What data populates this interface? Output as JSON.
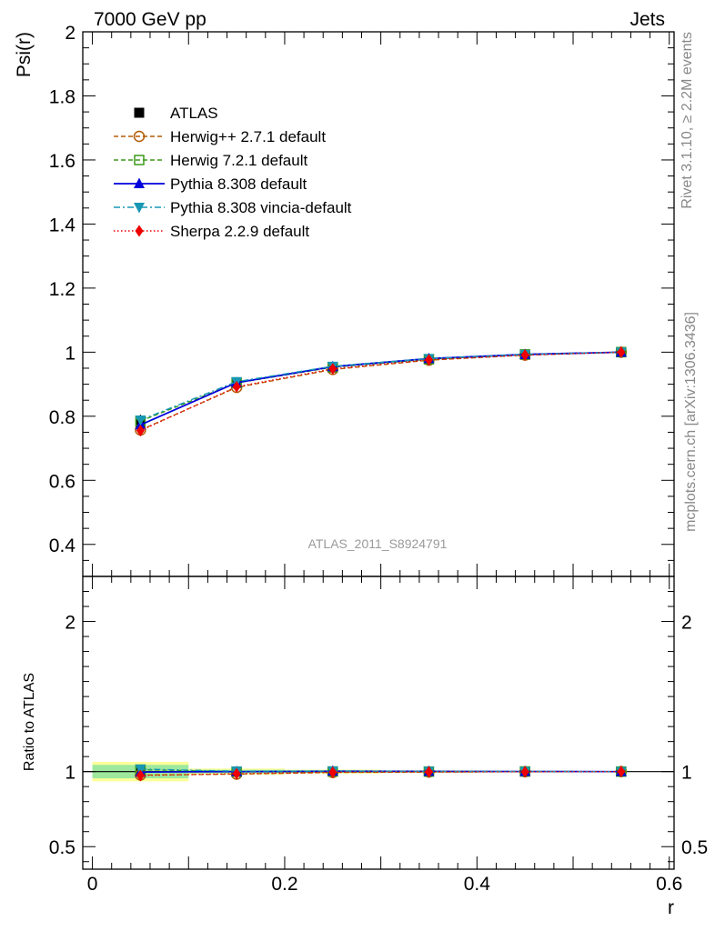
{
  "header": {
    "left": "7000 GeV pp",
    "right": "Jets"
  },
  "side": {
    "rivet": "Rivet 3.1.10, ≥ 2.2M events",
    "mcplots": "mcplots.cern.ch [arXiv:1306.3436]"
  },
  "analysis_label": "ATLAS_2011_S8924791",
  "chart_data": [
    {
      "type": "line",
      "panel": "main",
      "ylabel": "Psi(r)",
      "xlabel": "",
      "xlim": [
        -0.01,
        0.605
      ],
      "ylim": [
        0.3,
        2.0
      ],
      "y_ticks": [
        0.4,
        0.6,
        0.8,
        1.0,
        1.2,
        1.4,
        1.6,
        1.8,
        2.0
      ],
      "y_tick_labels": [
        "0.4",
        "0.6",
        "0.8",
        "1",
        "1.2",
        "1.4",
        "1.6",
        "1.8",
        "2"
      ],
      "x": [
        0.05,
        0.15,
        0.25,
        0.35,
        0.45,
        0.55
      ],
      "legend_position": "top-left",
      "series": [
        {
          "name": "ATLAS",
          "color": "#000000",
          "marker": "square-filled",
          "line": "none",
          "values": [
            0.775,
            0.905,
            0.952,
            0.978,
            0.992,
            1.0
          ],
          "err": [
            0.03,
            0.01,
            0.006,
            0.004,
            0.002,
            0.0
          ]
        },
        {
          "name": "Herwig++ 2.7.1 default",
          "color": "#b35900",
          "marker": "circle-open",
          "line": "dashed",
          "values": [
            0.757,
            0.89,
            0.946,
            0.975,
            0.991,
            1.0
          ]
        },
        {
          "name": "Herwig 7.2.1 default",
          "color": "#3a9a1a",
          "marker": "square-open",
          "line": "dashed",
          "values": [
            0.785,
            0.904,
            0.953,
            0.978,
            0.993,
            1.0
          ]
        },
        {
          "name": "Pythia 8.308 default",
          "color": "#0000dd",
          "marker": "triangle-up",
          "line": "solid",
          "values": [
            0.773,
            0.905,
            0.955,
            0.98,
            0.993,
            1.0
          ]
        },
        {
          "name": "Pythia 8.308 vincia-default",
          "color": "#1897b5",
          "marker": "triangle-down",
          "line": "dashdot",
          "values": [
            0.788,
            0.908,
            0.956,
            0.98,
            0.993,
            1.0
          ]
        },
        {
          "name": "Sherpa 2.2.9 default",
          "color": "#ee0000",
          "marker": "diamond",
          "line": "dotted",
          "values": [
            0.755,
            0.892,
            0.948,
            0.976,
            0.991,
            1.0
          ]
        }
      ]
    },
    {
      "type": "line",
      "panel": "ratio",
      "ylabel": "Ratio to ATLAS",
      "xlabel": "r",
      "xlim": [
        -0.01,
        0.605
      ],
      "ylim": [
        0.35,
        2.3
      ],
      "y_ticks": [
        0.5,
        1.0,
        2.0
      ],
      "y_tick_labels": [
        "0.5",
        "1",
        "2"
      ],
      "x_ticks": [
        0,
        0.2,
        0.4,
        0.6
      ],
      "x_tick_labels": [
        "0",
        "0.2",
        "0.4",
        "0.6"
      ],
      "x": [
        0.05,
        0.15,
        0.25,
        0.35,
        0.45,
        0.55
      ],
      "bands": {
        "bins": [
          [
            0.0,
            0.1
          ],
          [
            0.1,
            0.2
          ],
          [
            0.2,
            0.3
          ],
          [
            0.3,
            0.4
          ],
          [
            0.4,
            0.5
          ],
          [
            0.5,
            0.6
          ]
        ],
        "inner": [
          0.045,
          0.012,
          0.008,
          0.005,
          0.003,
          0.001
        ],
        "outer": [
          0.065,
          0.02,
          0.013,
          0.008,
          0.005,
          0.002
        ]
      },
      "series": [
        {
          "name": "ATLAS",
          "values": [
            1.0,
            1.0,
            1.0,
            1.0,
            1.0,
            1.0
          ]
        },
        {
          "name": "Herwig++ 2.7.1 default",
          "values": [
            0.977,
            0.983,
            0.994,
            0.997,
            0.999,
            1.0
          ]
        },
        {
          "name": "Herwig 7.2.1 default",
          "values": [
            1.013,
            0.999,
            1.001,
            1.0,
            1.001,
            1.0
          ]
        },
        {
          "name": "Pythia 8.308 default",
          "values": [
            0.997,
            1.0,
            1.003,
            1.002,
            1.001,
            1.0
          ]
        },
        {
          "name": "Pythia 8.308 vincia-default",
          "values": [
            1.017,
            1.003,
            1.004,
            1.002,
            1.001,
            1.0
          ]
        },
        {
          "name": "Sherpa 2.2.9 default",
          "values": [
            0.974,
            0.986,
            0.996,
            0.998,
            0.999,
            1.0
          ]
        }
      ]
    }
  ]
}
